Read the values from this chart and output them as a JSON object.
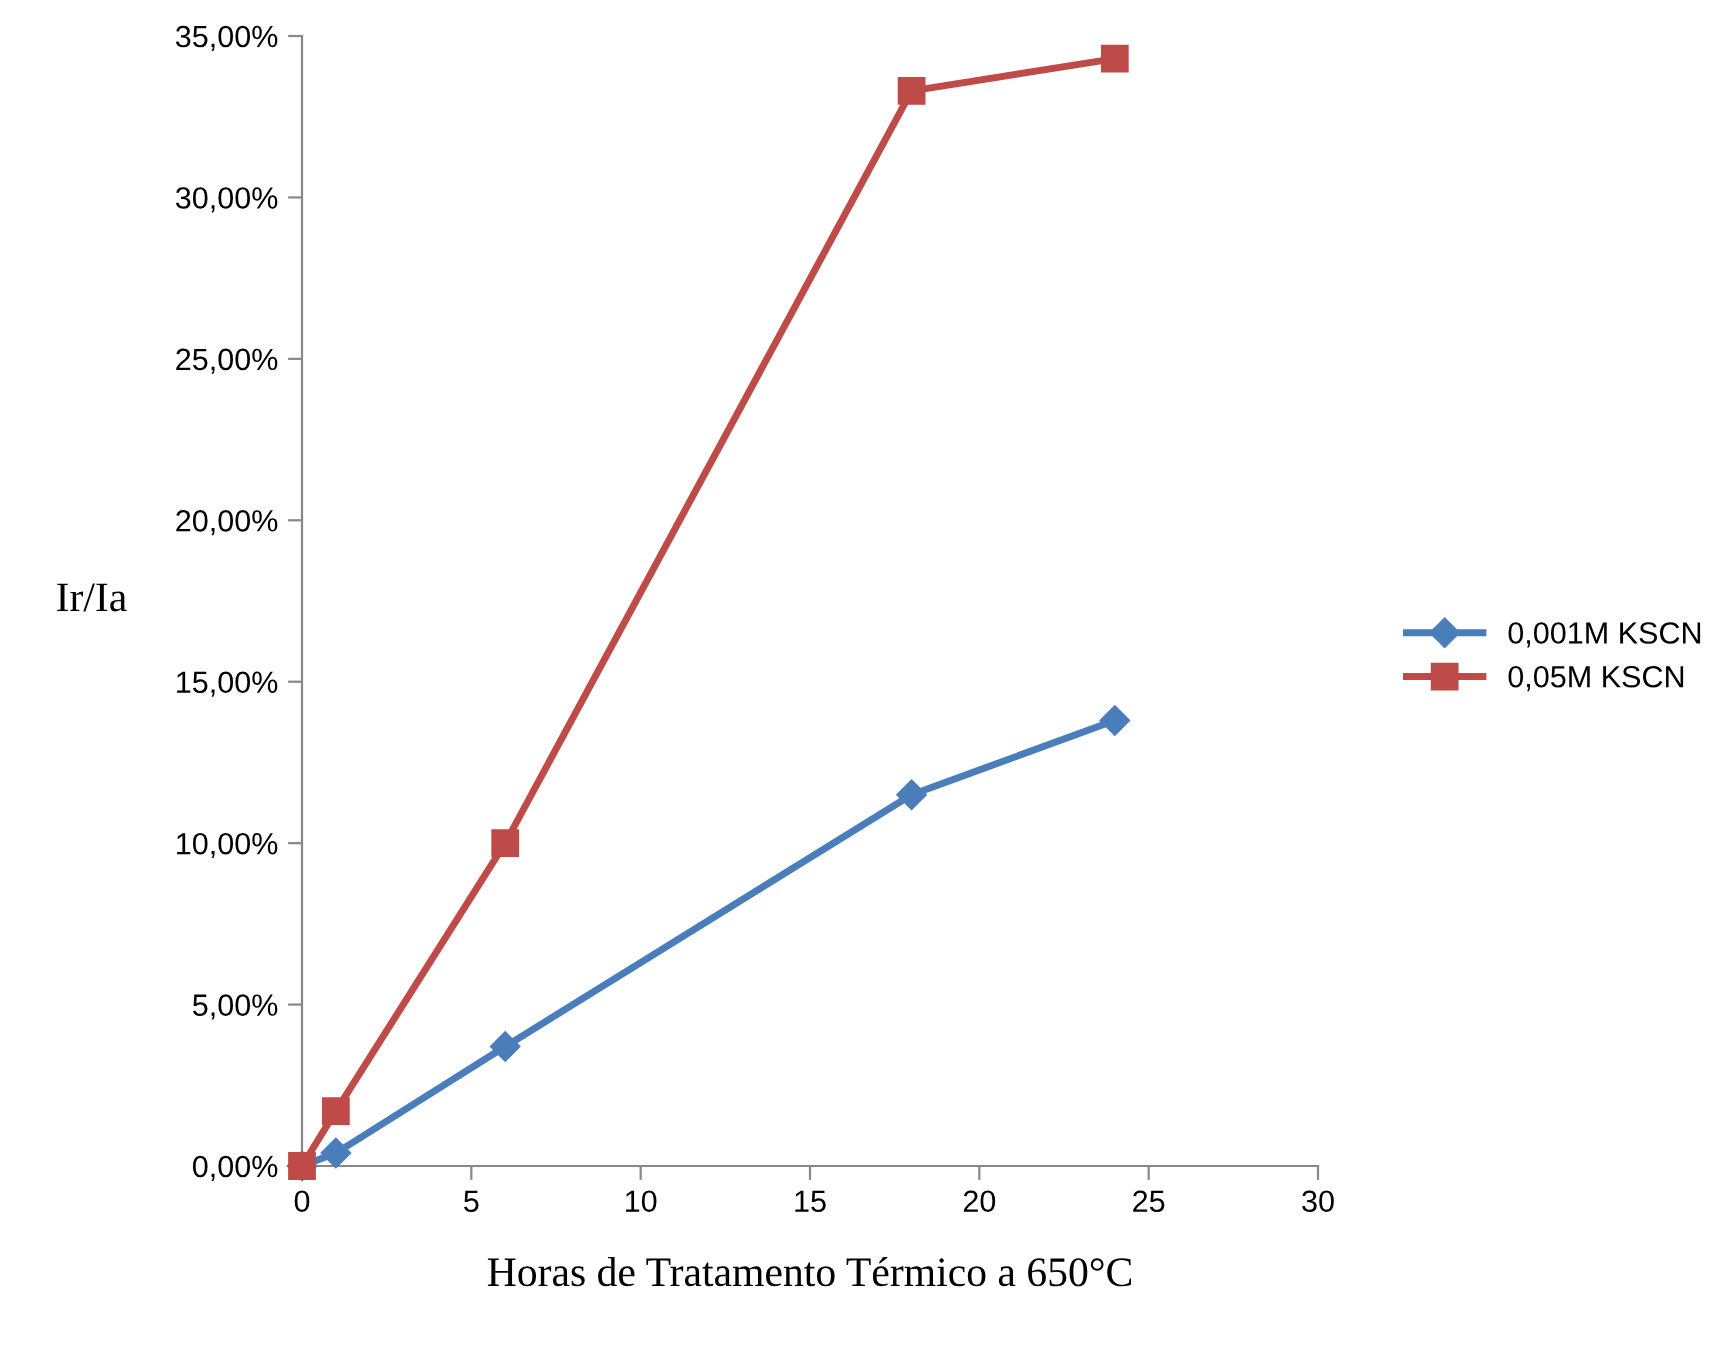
{
  "chart_data": {
    "type": "line",
    "xlabel": "Horas de Tratamento Térmico a 650°C",
    "ylabel": "Ir/Ia",
    "xlim": [
      0,
      30
    ],
    "xticks": [
      0,
      5,
      10,
      15,
      20,
      25,
      30
    ],
    "ylim": [
      0,
      35
    ],
    "yticks": [
      {
        "value": 0,
        "label": "0,00%"
      },
      {
        "value": 5,
        "label": "5,00%"
      },
      {
        "value": 10,
        "label": "10,00%"
      },
      {
        "value": 15,
        "label": "15,00%"
      },
      {
        "value": 20,
        "label": "20,00%"
      },
      {
        "value": 25,
        "label": "25,00%"
      },
      {
        "value": 30,
        "label": "30,00%"
      },
      {
        "value": 35,
        "label": "35,00%"
      }
    ],
    "x": [
      0,
      1,
      6,
      18,
      24
    ],
    "series": [
      {
        "name": "0,001M KSCN",
        "color": "#4a7ebb",
        "marker": "diamond",
        "values": [
          0,
          0.4,
          3.7,
          11.5,
          13.8
        ]
      },
      {
        "name": "0,05M KSCN",
        "color": "#be4b48",
        "marker": "square",
        "values": [
          0,
          1.7,
          10.0,
          33.3,
          34.3
        ]
      }
    ],
    "legend": "right",
    "grid": false,
    "line_style": "solid"
  }
}
